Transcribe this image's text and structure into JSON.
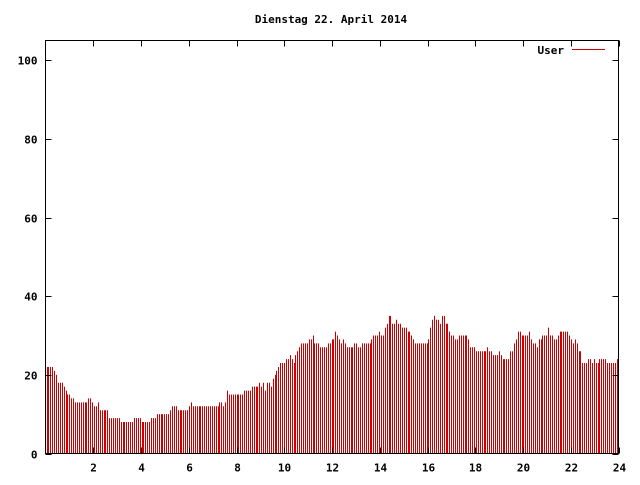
{
  "chart_data": {
    "type": "bar",
    "title": "Dienstag 22. April 2014",
    "xlabel": "",
    "ylabel": "",
    "xlim": [
      0,
      24
    ],
    "ylim": [
      0,
      105
    ],
    "x_ticks": [
      "2",
      "4",
      "6",
      "8",
      "10",
      "12",
      "14",
      "16",
      "18",
      "20",
      "22",
      "24"
    ],
    "y_ticks": [
      "0",
      "20",
      "40",
      "60",
      "80",
      "100"
    ],
    "grid": false,
    "legend_position": "top-right",
    "series": [
      {
        "name": "User",
        "color": "#cc0000",
        "values": [
          22,
          22,
          22,
          22,
          21,
          20,
          18,
          18,
          18,
          17,
          16,
          15,
          15,
          14,
          14,
          13,
          13,
          13,
          13,
          13,
          13,
          13,
          14,
          14,
          13,
          12,
          12,
          13,
          11,
          11,
          11,
          11,
          11,
          9,
          9,
          9,
          9,
          9,
          9,
          8,
          8,
          8,
          8,
          8,
          8,
          8,
          9,
          9,
          9,
          9,
          8,
          8,
          8,
          8,
          8,
          9,
          9,
          9,
          10,
          10,
          10,
          10,
          10,
          10,
          10,
          11,
          12,
          12,
          12,
          11,
          11,
          11,
          11,
          11,
          11,
          12,
          13,
          12,
          12,
          12,
          12,
          12,
          12,
          12,
          12,
          12,
          12,
          12,
          12,
          12,
          12,
          13,
          13,
          12,
          13,
          16,
          15,
          15,
          15,
          15,
          15,
          15,
          15,
          15,
          16,
          16,
          16,
          16,
          17,
          17,
          17,
          17,
          18,
          17,
          18,
          16,
          18,
          18,
          17,
          19,
          20,
          21,
          22,
          23,
          23,
          23,
          24,
          24,
          25,
          24,
          23,
          25,
          26,
          27,
          28,
          28,
          28,
          28,
          29,
          29,
          30,
          28,
          28,
          28,
          27,
          27,
          27,
          27,
          28,
          28,
          29,
          29,
          31,
          30,
          29,
          28,
          29,
          28,
          27,
          27,
          27,
          27,
          28,
          28,
          27,
          27,
          28,
          28,
          28,
          28,
          28,
          29,
          30,
          30,
          30,
          31,
          30,
          30,
          32,
          33,
          35,
          35,
          33,
          33,
          34,
          33,
          33,
          32,
          32,
          32,
          31,
          31,
          30,
          29,
          28,
          28,
          28,
          28,
          28,
          28,
          28,
          29,
          32,
          34,
          35,
          34,
          34,
          33,
          35,
          35,
          33,
          33,
          31,
          30,
          30,
          29,
          29,
          30,
          30,
          30,
          30,
          30,
          29,
          27,
          27,
          27,
          26,
          26,
          26,
          26,
          26,
          26,
          27,
          26,
          26,
          25,
          25,
          25,
          26,
          25,
          24,
          24,
          24,
          24,
          26,
          26,
          28,
          29,
          31,
          31,
          30,
          30,
          30,
          30,
          31,
          29,
          28,
          28,
          27,
          29,
          29,
          30,
          30,
          30,
          32,
          30,
          30,
          29,
          29,
          30,
          31,
          31,
          31,
          31,
          31,
          30,
          29,
          28,
          29,
          28,
          26,
          26,
          23,
          23,
          23,
          24,
          24,
          23,
          24,
          23,
          23,
          24,
          24,
          24,
          24,
          23,
          23,
          23,
          23,
          23,
          24
        ]
      }
    ]
  }
}
